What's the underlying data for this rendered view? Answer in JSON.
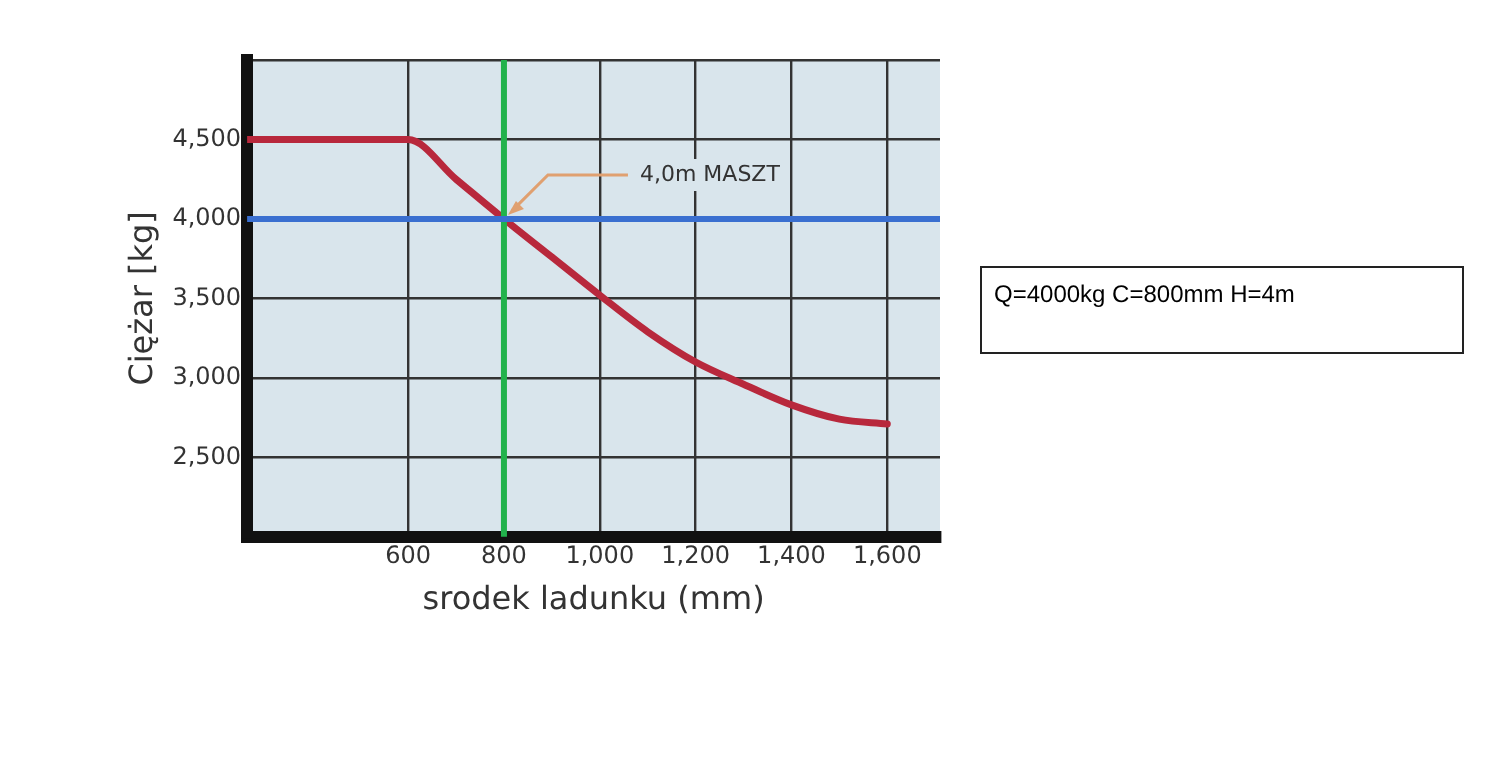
{
  "chart_data": {
    "type": "line",
    "xlabel": "srodek ladunku (mm)",
    "ylabel": "Ciężar [kg]",
    "x": [
      264,
      600,
      700,
      800,
      900,
      1000,
      1100,
      1200,
      1300,
      1400,
      1500,
      1600
    ],
    "series": [
      {
        "color": "#b8283c",
        "values": [
          4500,
          4500,
          4250,
          4000,
          3760,
          3520,
          3290,
          3100,
          2960,
          2830,
          2740,
          2710
        ]
      }
    ],
    "xlim": [
      264,
      1710
    ],
    "ylim": [
      2000,
      5000
    ],
    "xticks": [
      600,
      800,
      {
        "value": 1000,
        "label": "1,000"
      },
      {
        "value": 1200,
        "label": "1,200"
      },
      {
        "value": 1400,
        "label": "1,400"
      },
      {
        "value": 1600,
        "label": "1,600"
      }
    ],
    "yticks": [
      {
        "value": 2000,
        "label": null
      },
      {
        "value": 2500,
        "label": "2,500"
      },
      {
        "value": 3000,
        "label": "3,000"
      },
      {
        "value": 3500,
        "label": "3,500"
      },
      {
        "value": 4000,
        "label": "4,000"
      },
      {
        "value": 4500,
        "label": "4,500"
      },
      {
        "value": 5000,
        "label": null
      }
    ],
    "grid": true,
    "legend": false,
    "marker": "none",
    "line_style": "solid",
    "ref_lines": [
      {
        "axis": "x",
        "value": 800,
        "color": "#22b24c"
      },
      {
        "axis": "y",
        "value": 4000,
        "color": "#3a6fd0"
      }
    ],
    "annotations": [
      {
        "text": "4,0m MASZT",
        "x": 800,
        "y": 4000
      },
      "Q=4000kg C=800mm H=4m"
    ]
  }
}
